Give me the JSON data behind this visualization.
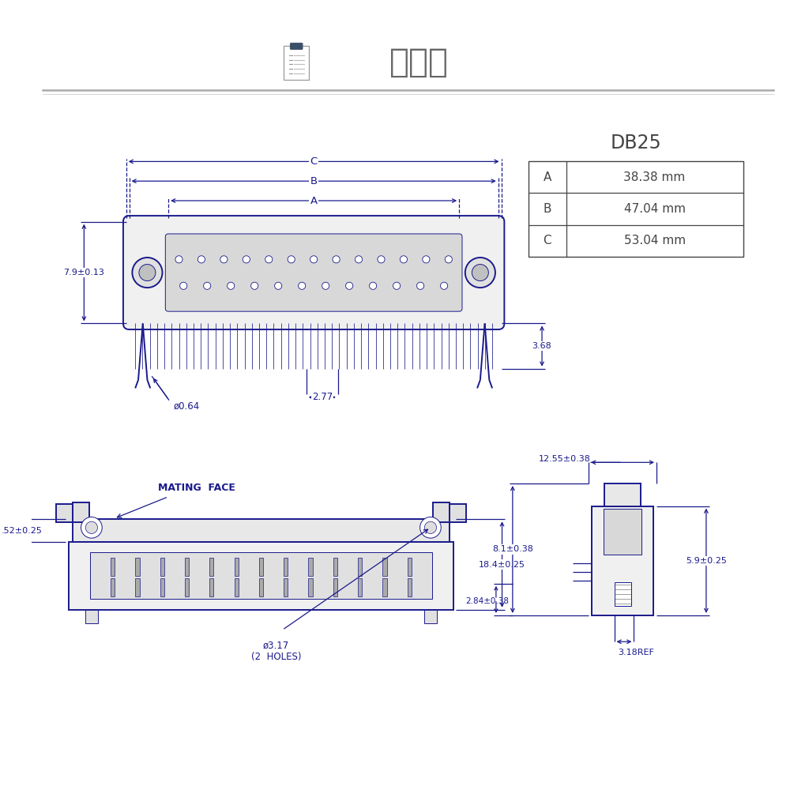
{
  "title": "結構圖",
  "bg_color": "#ffffff",
  "dc": "#1a1a8c",
  "tc": "#444444",
  "table_title": "DB25",
  "table_rows": [
    [
      "A",
      "38.38 mm"
    ],
    [
      "B",
      "47.04 mm"
    ],
    [
      "C",
      "53.04 mm"
    ]
  ],
  "label_79": "7.9±0.13",
  "label_368": "3.68",
  "label_064": "ø0.64",
  "label_277": "2.77",
  "label_mating": "MATING  FACE",
  "label_184": "18.4±0.25",
  "label_317": "ø3.17\n(2  HOLES)",
  "label_052": ".52±0.25",
  "label_1255": "12.55±0.38",
  "label_59": "5.9±0.25",
  "label_81": "8.1±0.38",
  "label_284": "2.84±0.38",
  "label_318": "3.18REF"
}
